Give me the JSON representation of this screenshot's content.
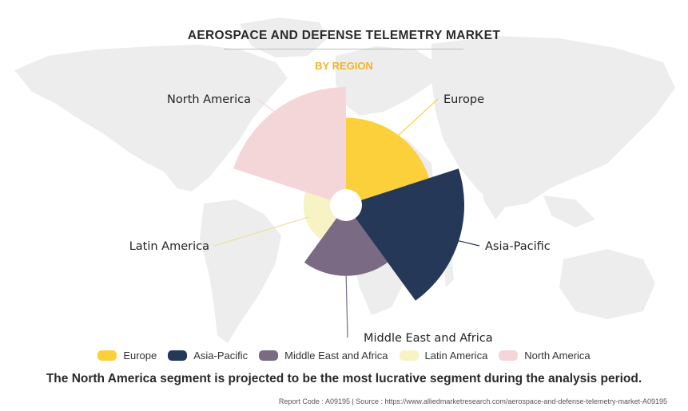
{
  "header": {
    "title": "AEROSPACE AND DEFENSE TELEMETRY MARKET",
    "subtitle": "BY REGION"
  },
  "chart_data": {
    "type": "polar-area",
    "title": "AEROSPACE AND DEFENSE TELEMETRY MARKET",
    "subtitle": "BY REGION",
    "categories": [
      "Europe",
      "Asia-Pacific",
      "Middle East and Africa",
      "Latin America",
      "North America"
    ],
    "values": [
      0.74,
      1.0,
      0.6,
      0.36,
      1.0
    ],
    "value_scale": "relative radius (largest = 1.0), no values printed",
    "colors": [
      "#fcd03b",
      "#253858",
      "#7a6a84",
      "#f7f3c4",
      "#f5d6d8"
    ],
    "legend": {
      "position": "bottom"
    },
    "callouts": [
      "Europe",
      "Asia-Pacific",
      "Middle East and Africa",
      "Latin America",
      "North America"
    ]
  },
  "legend": {
    "items": [
      {
        "label": "Europe",
        "color": "#fcd03b"
      },
      {
        "label": "Asia-Pacific",
        "color": "#253858"
      },
      {
        "label": "Middle East and Africa",
        "color": "#7a6a84"
      },
      {
        "label": "Latin America",
        "color": "#f7f3c4"
      },
      {
        "label": "North America",
        "color": "#f5d6d8"
      }
    ]
  },
  "conclusion": "The North America segment is projected to be the most lucrative segment during the analysis period.",
  "footer": "Report Code : A09195  |  Source : https://www.alliedmarketresearch.com/aerospace-and-defense-telemetry-market-A09195"
}
